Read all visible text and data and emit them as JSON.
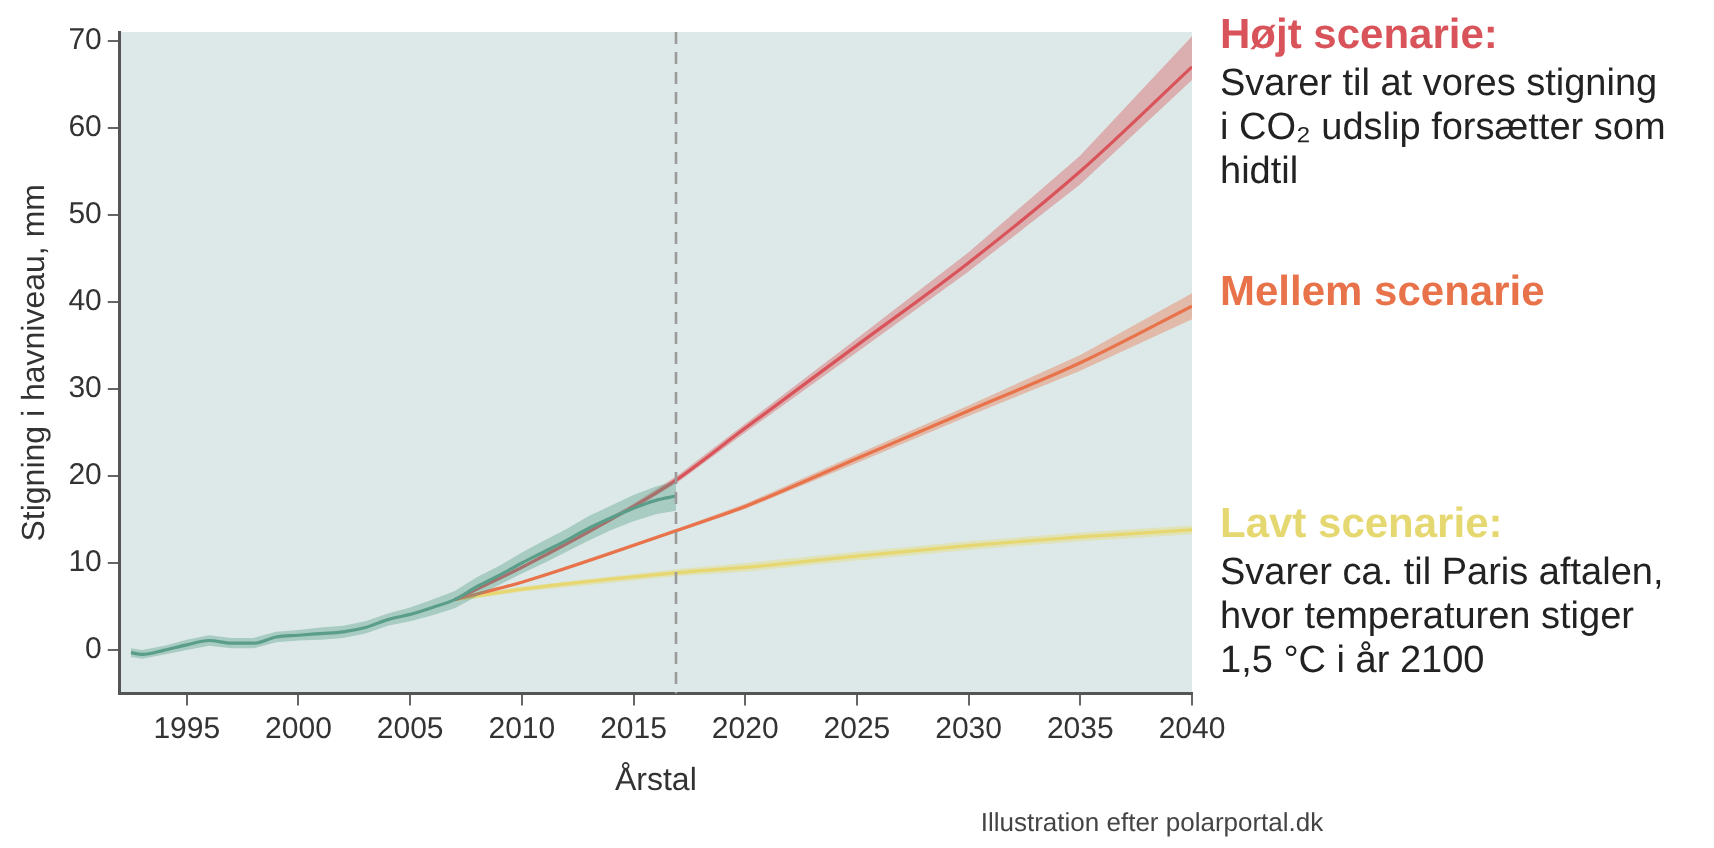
{
  "chart_data": {
    "type": "line",
    "xlabel": "Årstal",
    "ylabel": "Stigning i havniveau, mm",
    "xlim": [
      1992,
      2040
    ],
    "xticks": [
      1995,
      2000,
      2005,
      2010,
      2015,
      2020,
      2025,
      2030,
      2035,
      2040
    ],
    "ylim": [
      -5,
      71
    ],
    "yticks": [
      0,
      10,
      20,
      30,
      40,
      50,
      60,
      70
    ],
    "grid": false,
    "legend": false,
    "marker": "none",
    "line_style": "solid",
    "ref_lines": [
      {
        "axis": "x",
        "value": 2016.9,
        "color": "#9a9a9a",
        "line_style": "dashed"
      }
    ],
    "series": [
      {
        "color": "#5a9e8a",
        "x": [
          1992.5,
          1993,
          1994,
          1995,
          1996,
          1997,
          1998,
          1999,
          2000,
          2001,
          2002,
          2003,
          2004,
          2005,
          2006,
          2007,
          2008,
          2009,
          2010,
          2011,
          2012,
          2013,
          2014,
          2015,
          2016,
          2016.9
        ],
        "values": [
          -0.3,
          -0.5,
          0,
          0.6,
          1.1,
          0.8,
          0.8,
          1.5,
          1.7,
          1.9,
          2.1,
          2.6,
          3.5,
          4.1,
          4.9,
          5.8,
          7.3,
          8.6,
          10,
          11.3,
          12.6,
          14,
          15.2,
          16.3,
          17.2,
          17.7
        ],
        "lower": [
          -0.8,
          -1,
          -0.5,
          0,
          0.5,
          0.2,
          0.2,
          0.9,
          1.1,
          1.2,
          1.4,
          1.9,
          2.8,
          3.3,
          4,
          4.8,
          6.2,
          7.5,
          8.8,
          10,
          11.3,
          12.6,
          13.8,
          14.8,
          15.6,
          16
        ],
        "upper": [
          0.2,
          0,
          0.5,
          1.2,
          1.7,
          1.4,
          1.4,
          2.1,
          2.3,
          2.6,
          2.8,
          3.3,
          4.2,
          4.9,
          5.8,
          6.8,
          8.4,
          9.7,
          11.2,
          12.6,
          13.9,
          15.4,
          16.6,
          17.8,
          18.8,
          19.4
        ]
      },
      {
        "name": "Højt scenarie:",
        "color": "#d9545a",
        "x": [
          2007,
          2010,
          2015,
          2017,
          2020,
          2025,
          2030,
          2035,
          2040
        ],
        "values": [
          5.8,
          9.5,
          16.5,
          19.7,
          25.5,
          35,
          44.5,
          55,
          67
        ],
        "lower": [
          5.7,
          9.3,
          16.2,
          19.3,
          25,
          34.2,
          43.5,
          53.5,
          65.5
        ],
        "upper": [
          5.9,
          9.7,
          16.8,
          20.1,
          26,
          35.8,
          45.7,
          56.8,
          70.5
        ]
      },
      {
        "name": "Mellem scenarie",
        "color": "#e8734a",
        "x": [
          2007,
          2010,
          2017,
          2020,
          2025,
          2030,
          2035,
          2040
        ],
        "values": [
          5.8,
          7.8,
          13.8,
          16.5,
          22,
          27.5,
          33,
          39.5
        ],
        "lower": [
          5.7,
          7.7,
          13.6,
          16.2,
          21.5,
          26.9,
          32.1,
          38
        ],
        "upper": [
          5.9,
          7.9,
          14,
          16.8,
          22.5,
          28.1,
          33.9,
          41
        ]
      },
      {
        "name": "Lavt scenarie:",
        "color": "#e6d870",
        "x": [
          2007,
          2010,
          2017,
          2020,
          2025,
          2030,
          2035,
          2040
        ],
        "values": [
          5.8,
          7,
          8.9,
          9.5,
          10.8,
          12,
          13,
          13.8
        ],
        "lower": [
          5.6,
          6.7,
          8.5,
          9,
          10.3,
          11.5,
          12.5,
          13.3
        ],
        "upper": [
          6,
          7.3,
          9.3,
          10,
          11.3,
          12.5,
          13.5,
          14.3
        ]
      }
    ],
    "annotations": [
      {
        "text": "Svarer til at vores stigning i CO₂ udslip forsætter som hidtil",
        "x": 2040,
        "y": 67
      },
      {
        "text": "Svarer ca. til Paris aftalen, hvor temperaturen stiger 1,5 °C i år 2100",
        "x": 2040,
        "y": 13.8
      },
      "Illustration efter polarportal.dk"
    ]
  }
}
